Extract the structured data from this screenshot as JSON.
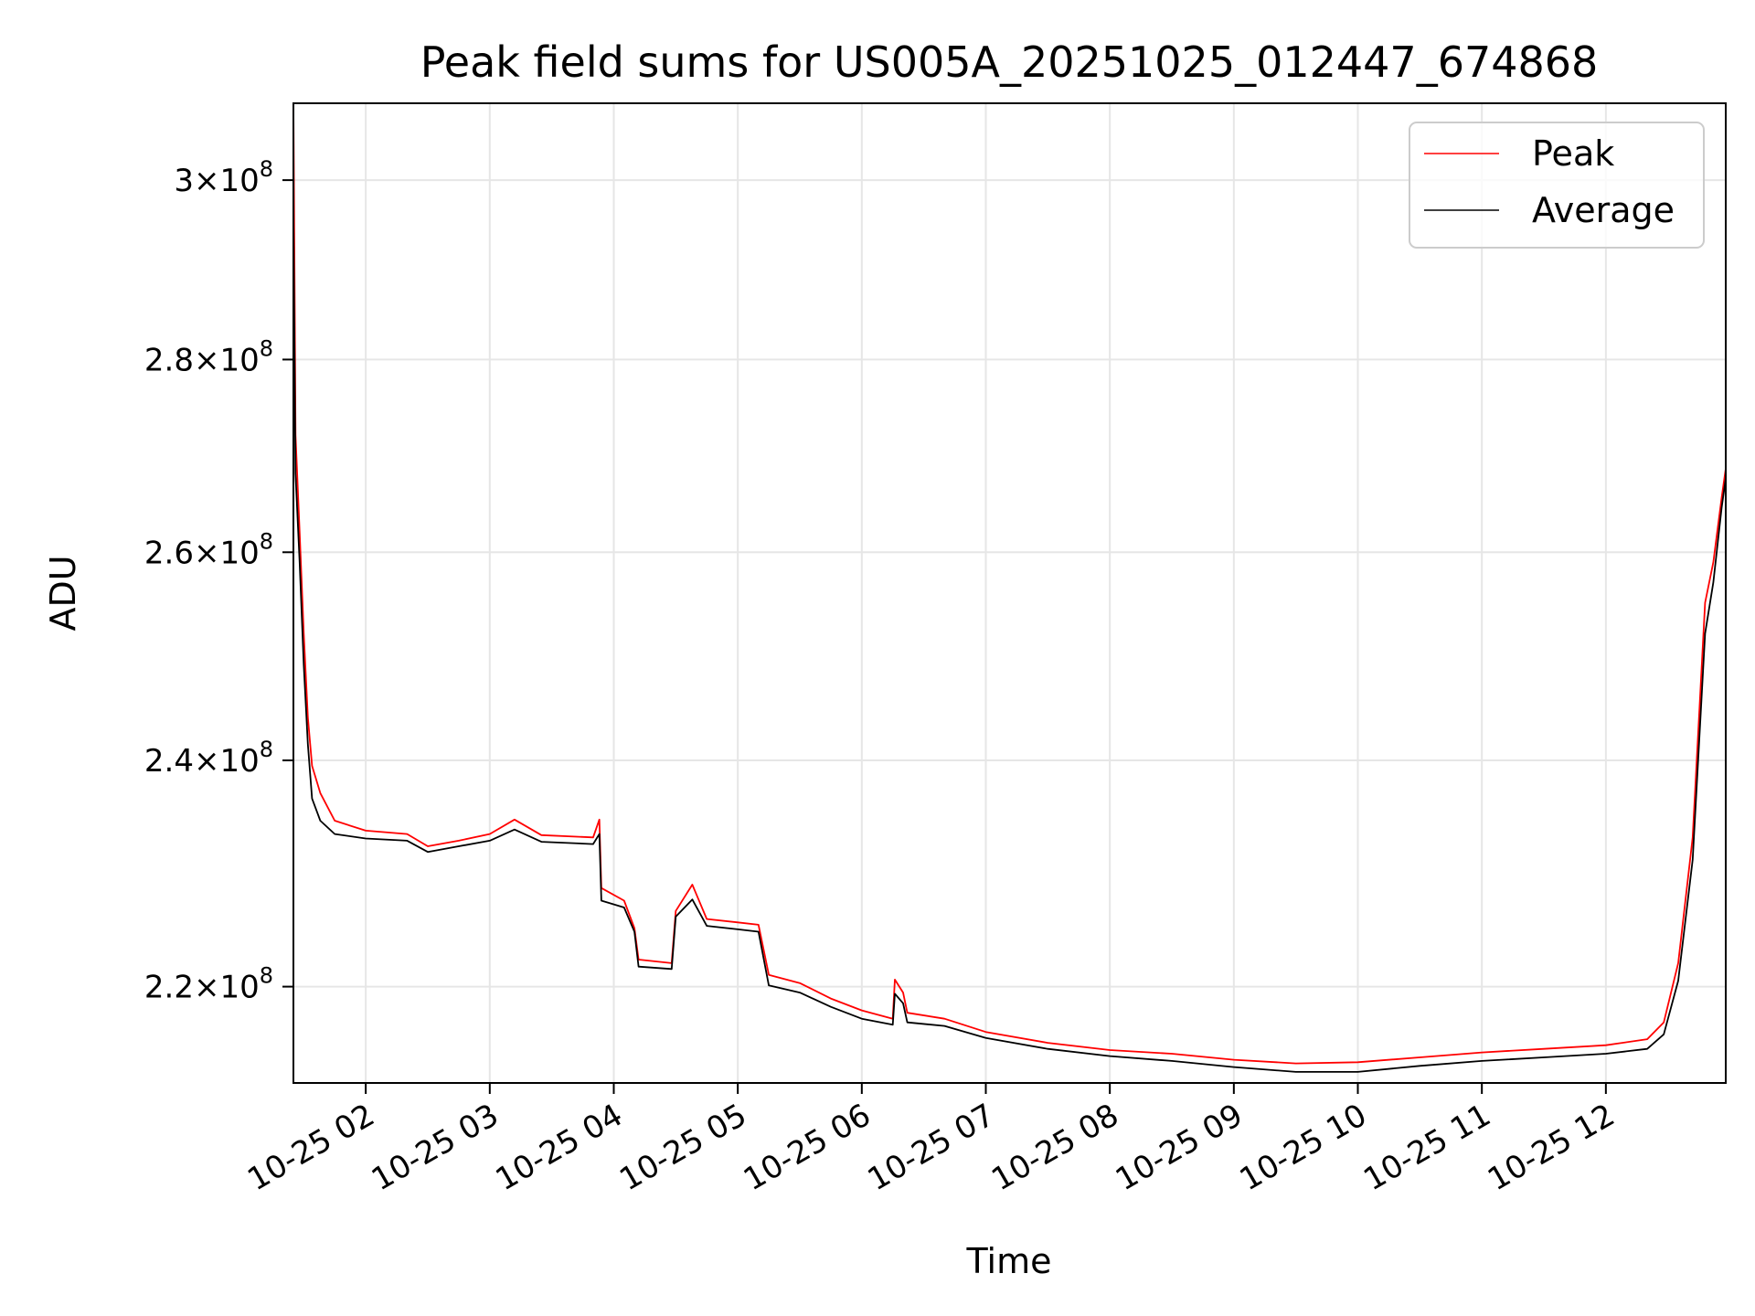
{
  "chart_data": {
    "type": "line",
    "title": "Peak field sums for US005A_20251025_012447_674868",
    "xlabel": "Time",
    "ylabel": "ADU",
    "y_scale": "log",
    "xlim": [
      "2025-10-25 01:25",
      "2025-10-25 12:58"
    ],
    "ylim": [
      212000000,
      309000000
    ],
    "x_ticks": [
      {
        "value": "2025-10-25 02:00",
        "label": "10-25 02"
      },
      {
        "value": "2025-10-25 03:00",
        "label": "10-25 03"
      },
      {
        "value": "2025-10-25 04:00",
        "label": "10-25 04"
      },
      {
        "value": "2025-10-25 05:00",
        "label": "10-25 05"
      },
      {
        "value": "2025-10-25 06:00",
        "label": "10-25 06"
      },
      {
        "value": "2025-10-25 07:00",
        "label": "10-25 07"
      },
      {
        "value": "2025-10-25 08:00",
        "label": "10-25 08"
      },
      {
        "value": "2025-10-25 09:00",
        "label": "10-25 09"
      },
      {
        "value": "2025-10-25 10:00",
        "label": "10-25 10"
      },
      {
        "value": "2025-10-25 11:00",
        "label": "10-25 11"
      },
      {
        "value": "2025-10-25 12:00",
        "label": "10-25 12"
      }
    ],
    "y_ticks": [
      {
        "value": 220000000,
        "mantissa": "2.2",
        "exponent": "8"
      },
      {
        "value": 240000000,
        "mantissa": "2.4",
        "exponent": "8"
      },
      {
        "value": 260000000,
        "mantissa": "2.6",
        "exponent": "8"
      },
      {
        "value": 280000000,
        "mantissa": "2.8",
        "exponent": "8"
      },
      {
        "value": 300000000,
        "mantissa": "3",
        "exponent": "8"
      }
    ],
    "times_label": "×10",
    "grid": true,
    "legend_position": "top-right",
    "series": [
      {
        "name": "Peak",
        "color": "#ff0000",
        "points": [
          [
            "2025-10-25 01:25",
            309000000
          ],
          [
            "2025-10-25 01:26",
            272000000
          ],
          [
            "2025-10-25 01:28",
            262000000
          ],
          [
            "2025-10-25 01:30",
            252000000
          ],
          [
            "2025-10-25 01:32",
            244000000
          ],
          [
            "2025-10-25 01:34",
            239500000
          ],
          [
            "2025-10-25 01:38",
            237000000
          ],
          [
            "2025-10-25 01:45",
            234500000
          ],
          [
            "2025-10-25 02:00",
            233600000
          ],
          [
            "2025-10-25 02:20",
            233300000
          ],
          [
            "2025-10-25 02:30",
            232200000
          ],
          [
            "2025-10-25 02:45",
            232700000
          ],
          [
            "2025-10-25 03:00",
            233300000
          ],
          [
            "2025-10-25 03:12",
            234600000
          ],
          [
            "2025-10-25 03:25",
            233200000
          ],
          [
            "2025-10-25 03:50",
            233000000
          ],
          [
            "2025-10-25 03:53",
            234600000
          ],
          [
            "2025-10-25 03:54",
            228500000
          ],
          [
            "2025-10-25 04:05",
            227400000
          ],
          [
            "2025-10-25 04:10",
            225000000
          ],
          [
            "2025-10-25 04:12",
            222300000
          ],
          [
            "2025-10-25 04:28",
            222000000
          ],
          [
            "2025-10-25 04:30",
            226500000
          ],
          [
            "2025-10-25 04:38",
            228800000
          ],
          [
            "2025-10-25 04:45",
            225800000
          ],
          [
            "2025-10-25 05:00",
            225500000
          ],
          [
            "2025-10-25 05:10",
            225300000
          ],
          [
            "2025-10-25 05:15",
            221000000
          ],
          [
            "2025-10-25 05:30",
            220300000
          ],
          [
            "2025-10-25 05:45",
            219000000
          ],
          [
            "2025-10-25 06:00",
            218000000
          ],
          [
            "2025-10-25 06:15",
            217300000
          ],
          [
            "2025-10-25 06:16",
            220600000
          ],
          [
            "2025-10-25 06:20",
            219500000
          ],
          [
            "2025-10-25 06:22",
            217800000
          ],
          [
            "2025-10-25 06:40",
            217300000
          ],
          [
            "2025-10-25 07:00",
            216200000
          ],
          [
            "2025-10-25 07:30",
            215300000
          ],
          [
            "2025-10-25 08:00",
            214700000
          ],
          [
            "2025-10-25 08:30",
            214400000
          ],
          [
            "2025-10-25 09:00",
            213900000
          ],
          [
            "2025-10-25 09:30",
            213600000
          ],
          [
            "2025-10-25 10:00",
            213700000
          ],
          [
            "2025-10-25 10:30",
            214100000
          ],
          [
            "2025-10-25 11:00",
            214500000
          ],
          [
            "2025-10-25 11:30",
            214800000
          ],
          [
            "2025-10-25 12:00",
            215100000
          ],
          [
            "2025-10-25 12:20",
            215600000
          ],
          [
            "2025-10-25 12:28",
            217000000
          ],
          [
            "2025-10-25 12:35",
            222000000
          ],
          [
            "2025-10-25 12:42",
            233000000
          ],
          [
            "2025-10-25 12:48",
            255000000
          ],
          [
            "2025-10-25 12:52",
            259000000
          ],
          [
            "2025-10-25 12:56",
            265500000
          ],
          [
            "2025-10-25 12:58",
            268500000
          ]
        ]
      },
      {
        "name": "Average",
        "color": "#000000",
        "points": [
          [
            "2025-10-25 01:25",
            296000000
          ],
          [
            "2025-10-25 01:26",
            268000000
          ],
          [
            "2025-10-25 01:28",
            259000000
          ],
          [
            "2025-10-25 01:30",
            249000000
          ],
          [
            "2025-10-25 01:32",
            241500000
          ],
          [
            "2025-10-25 01:34",
            236500000
          ],
          [
            "2025-10-25 01:38",
            234500000
          ],
          [
            "2025-10-25 01:45",
            233300000
          ],
          [
            "2025-10-25 02:00",
            232900000
          ],
          [
            "2025-10-25 02:20",
            232700000
          ],
          [
            "2025-10-25 02:30",
            231700000
          ],
          [
            "2025-10-25 02:45",
            232200000
          ],
          [
            "2025-10-25 03:00",
            232700000
          ],
          [
            "2025-10-25 03:12",
            233700000
          ],
          [
            "2025-10-25 03:25",
            232600000
          ],
          [
            "2025-10-25 03:50",
            232400000
          ],
          [
            "2025-10-25 03:53",
            233300000
          ],
          [
            "2025-10-25 03:54",
            227400000
          ],
          [
            "2025-10-25 04:05",
            226800000
          ],
          [
            "2025-10-25 04:10",
            224700000
          ],
          [
            "2025-10-25 04:12",
            221700000
          ],
          [
            "2025-10-25 04:28",
            221500000
          ],
          [
            "2025-10-25 04:30",
            226000000
          ],
          [
            "2025-10-25 04:38",
            227500000
          ],
          [
            "2025-10-25 04:45",
            225200000
          ],
          [
            "2025-10-25 05:00",
            224900000
          ],
          [
            "2025-10-25 05:10",
            224700000
          ],
          [
            "2025-10-25 05:15",
            220100000
          ],
          [
            "2025-10-25 05:30",
            219500000
          ],
          [
            "2025-10-25 05:45",
            218300000
          ],
          [
            "2025-10-25 06:00",
            217300000
          ],
          [
            "2025-10-25 06:15",
            216800000
          ],
          [
            "2025-10-25 06:16",
            219400000
          ],
          [
            "2025-10-25 06:20",
            218600000
          ],
          [
            "2025-10-25 06:22",
            217000000
          ],
          [
            "2025-10-25 06:40",
            216700000
          ],
          [
            "2025-10-25 07:00",
            215700000
          ],
          [
            "2025-10-25 07:30",
            214800000
          ],
          [
            "2025-10-25 08:00",
            214200000
          ],
          [
            "2025-10-25 08:30",
            213800000
          ],
          [
            "2025-10-25 09:00",
            213300000
          ],
          [
            "2025-10-25 09:30",
            212900000
          ],
          [
            "2025-10-25 10:00",
            212900000
          ],
          [
            "2025-10-25 10:30",
            213400000
          ],
          [
            "2025-10-25 11:00",
            213800000
          ],
          [
            "2025-10-25 11:30",
            214100000
          ],
          [
            "2025-10-25 12:00",
            214400000
          ],
          [
            "2025-10-25 12:20",
            214800000
          ],
          [
            "2025-10-25 12:28",
            216000000
          ],
          [
            "2025-10-25 12:35",
            220500000
          ],
          [
            "2025-10-25 12:42",
            231000000
          ],
          [
            "2025-10-25 12:48",
            252000000
          ],
          [
            "2025-10-25 12:52",
            257000000
          ],
          [
            "2025-10-25 12:56",
            264500000
          ],
          [
            "2025-10-25 12:58",
            267500000
          ]
        ]
      }
    ]
  }
}
